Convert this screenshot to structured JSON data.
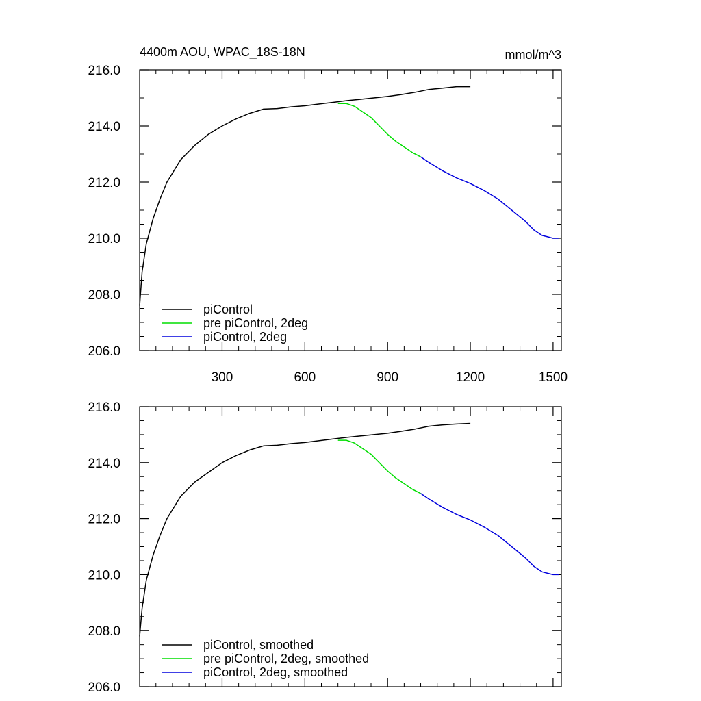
{
  "title": "4400m AOU, WPAC_18S-18N",
  "units": "mmol/m^3",
  "colors": {
    "piControl": "#000000",
    "pre": "#00dd00",
    "twodeg": "#0000dd"
  },
  "chart_data": [
    {
      "type": "line",
      "title": "4400m AOU, WPAC_18S-18N",
      "units_label": "mmol/m^3",
      "xlim": [
        1,
        1530
      ],
      "ylim": [
        206.0,
        216.0
      ],
      "xticks": [
        300,
        600,
        900,
        1200,
        1500
      ],
      "xtick_labels": [
        "300",
        "600",
        "900",
        "1200",
        "1500"
      ],
      "yticks": [
        206.0,
        208.0,
        210.0,
        212.0,
        214.0,
        216.0
      ],
      "ytick_labels": [
        "206.0",
        "208.0",
        "210.0",
        "212.0",
        "214.0",
        "216.0"
      ],
      "legend_position": "bottom-left",
      "series": [
        {
          "name": "piControl",
          "color": "#000000",
          "x": [
            1,
            10,
            25,
            50,
            75,
            100,
            150,
            200,
            250,
            300,
            350,
            400,
            450,
            500,
            550,
            600,
            650,
            700,
            750,
            800,
            850,
            900,
            950,
            1000,
            1050,
            1100,
            1150,
            1200
          ],
          "y": [
            207.6,
            208.8,
            209.8,
            210.7,
            211.4,
            212.0,
            212.8,
            213.3,
            213.7,
            214.0,
            214.25,
            214.45,
            214.6,
            214.62,
            214.68,
            214.72,
            214.78,
            214.84,
            214.9,
            214.95,
            215.0,
            215.05,
            215.12,
            215.2,
            215.3,
            215.35,
            215.4,
            215.4
          ]
        },
        {
          "name": "pre piControl, 2deg",
          "color": "#00dd00",
          "x": [
            720,
            750,
            780,
            810,
            840,
            870,
            900,
            930,
            960,
            990,
            1020
          ],
          "y": [
            214.8,
            214.8,
            214.7,
            214.5,
            214.3,
            214.0,
            213.7,
            213.45,
            213.25,
            213.05,
            212.9
          ]
        },
        {
          "name": "piControl, 2deg",
          "color": "#0000dd",
          "x": [
            1020,
            1050,
            1100,
            1150,
            1200,
            1250,
            1300,
            1350,
            1400,
            1430,
            1460,
            1480,
            1500,
            1520
          ],
          "y": [
            212.9,
            212.7,
            212.4,
            212.15,
            211.95,
            211.7,
            211.4,
            211.0,
            210.6,
            210.3,
            210.1,
            210.05,
            210.0,
            210.0
          ]
        }
      ]
    },
    {
      "type": "line",
      "xlim": [
        1,
        1530
      ],
      "ylim": [
        206.0,
        216.0
      ],
      "xticks": [
        300,
        600,
        900,
        1200,
        1500
      ],
      "xtick_labels": [],
      "yticks": [
        206.0,
        208.0,
        210.0,
        212.0,
        214.0,
        216.0
      ],
      "ytick_labels": [
        "206.0",
        "208.0",
        "210.0",
        "212.0",
        "214.0",
        "216.0"
      ],
      "legend_position": "bottom-left",
      "series": [
        {
          "name": "piControl, smoothed",
          "color": "#000000",
          "x": [
            1,
            10,
            25,
            50,
            75,
            100,
            150,
            200,
            250,
            300,
            350,
            400,
            450,
            500,
            550,
            600,
            650,
            700,
            750,
            800,
            850,
            900,
            950,
            1000,
            1050,
            1100,
            1150,
            1200
          ],
          "y": [
            207.8,
            208.8,
            209.8,
            210.7,
            211.4,
            212.0,
            212.8,
            213.3,
            213.65,
            214.0,
            214.25,
            214.45,
            214.6,
            214.62,
            214.68,
            214.72,
            214.78,
            214.84,
            214.9,
            214.95,
            215.0,
            215.05,
            215.12,
            215.2,
            215.3,
            215.35,
            215.38,
            215.4
          ]
        },
        {
          "name": "pre piControl, 2deg, smoothed",
          "color": "#00dd00",
          "x": [
            720,
            750,
            780,
            810,
            840,
            870,
            900,
            930,
            960,
            990,
            1020
          ],
          "y": [
            214.8,
            214.8,
            214.7,
            214.5,
            214.3,
            214.0,
            213.7,
            213.45,
            213.25,
            213.05,
            212.9
          ]
        },
        {
          "name": "piControl, 2deg, smoothed",
          "color": "#0000dd",
          "x": [
            1020,
            1050,
            1100,
            1150,
            1200,
            1250,
            1300,
            1350,
            1400,
            1430,
            1460,
            1480,
            1500,
            1520
          ],
          "y": [
            212.9,
            212.7,
            212.4,
            212.15,
            211.95,
            211.7,
            211.4,
            211.0,
            210.6,
            210.3,
            210.1,
            210.05,
            210.0,
            210.0
          ]
        }
      ]
    }
  ]
}
